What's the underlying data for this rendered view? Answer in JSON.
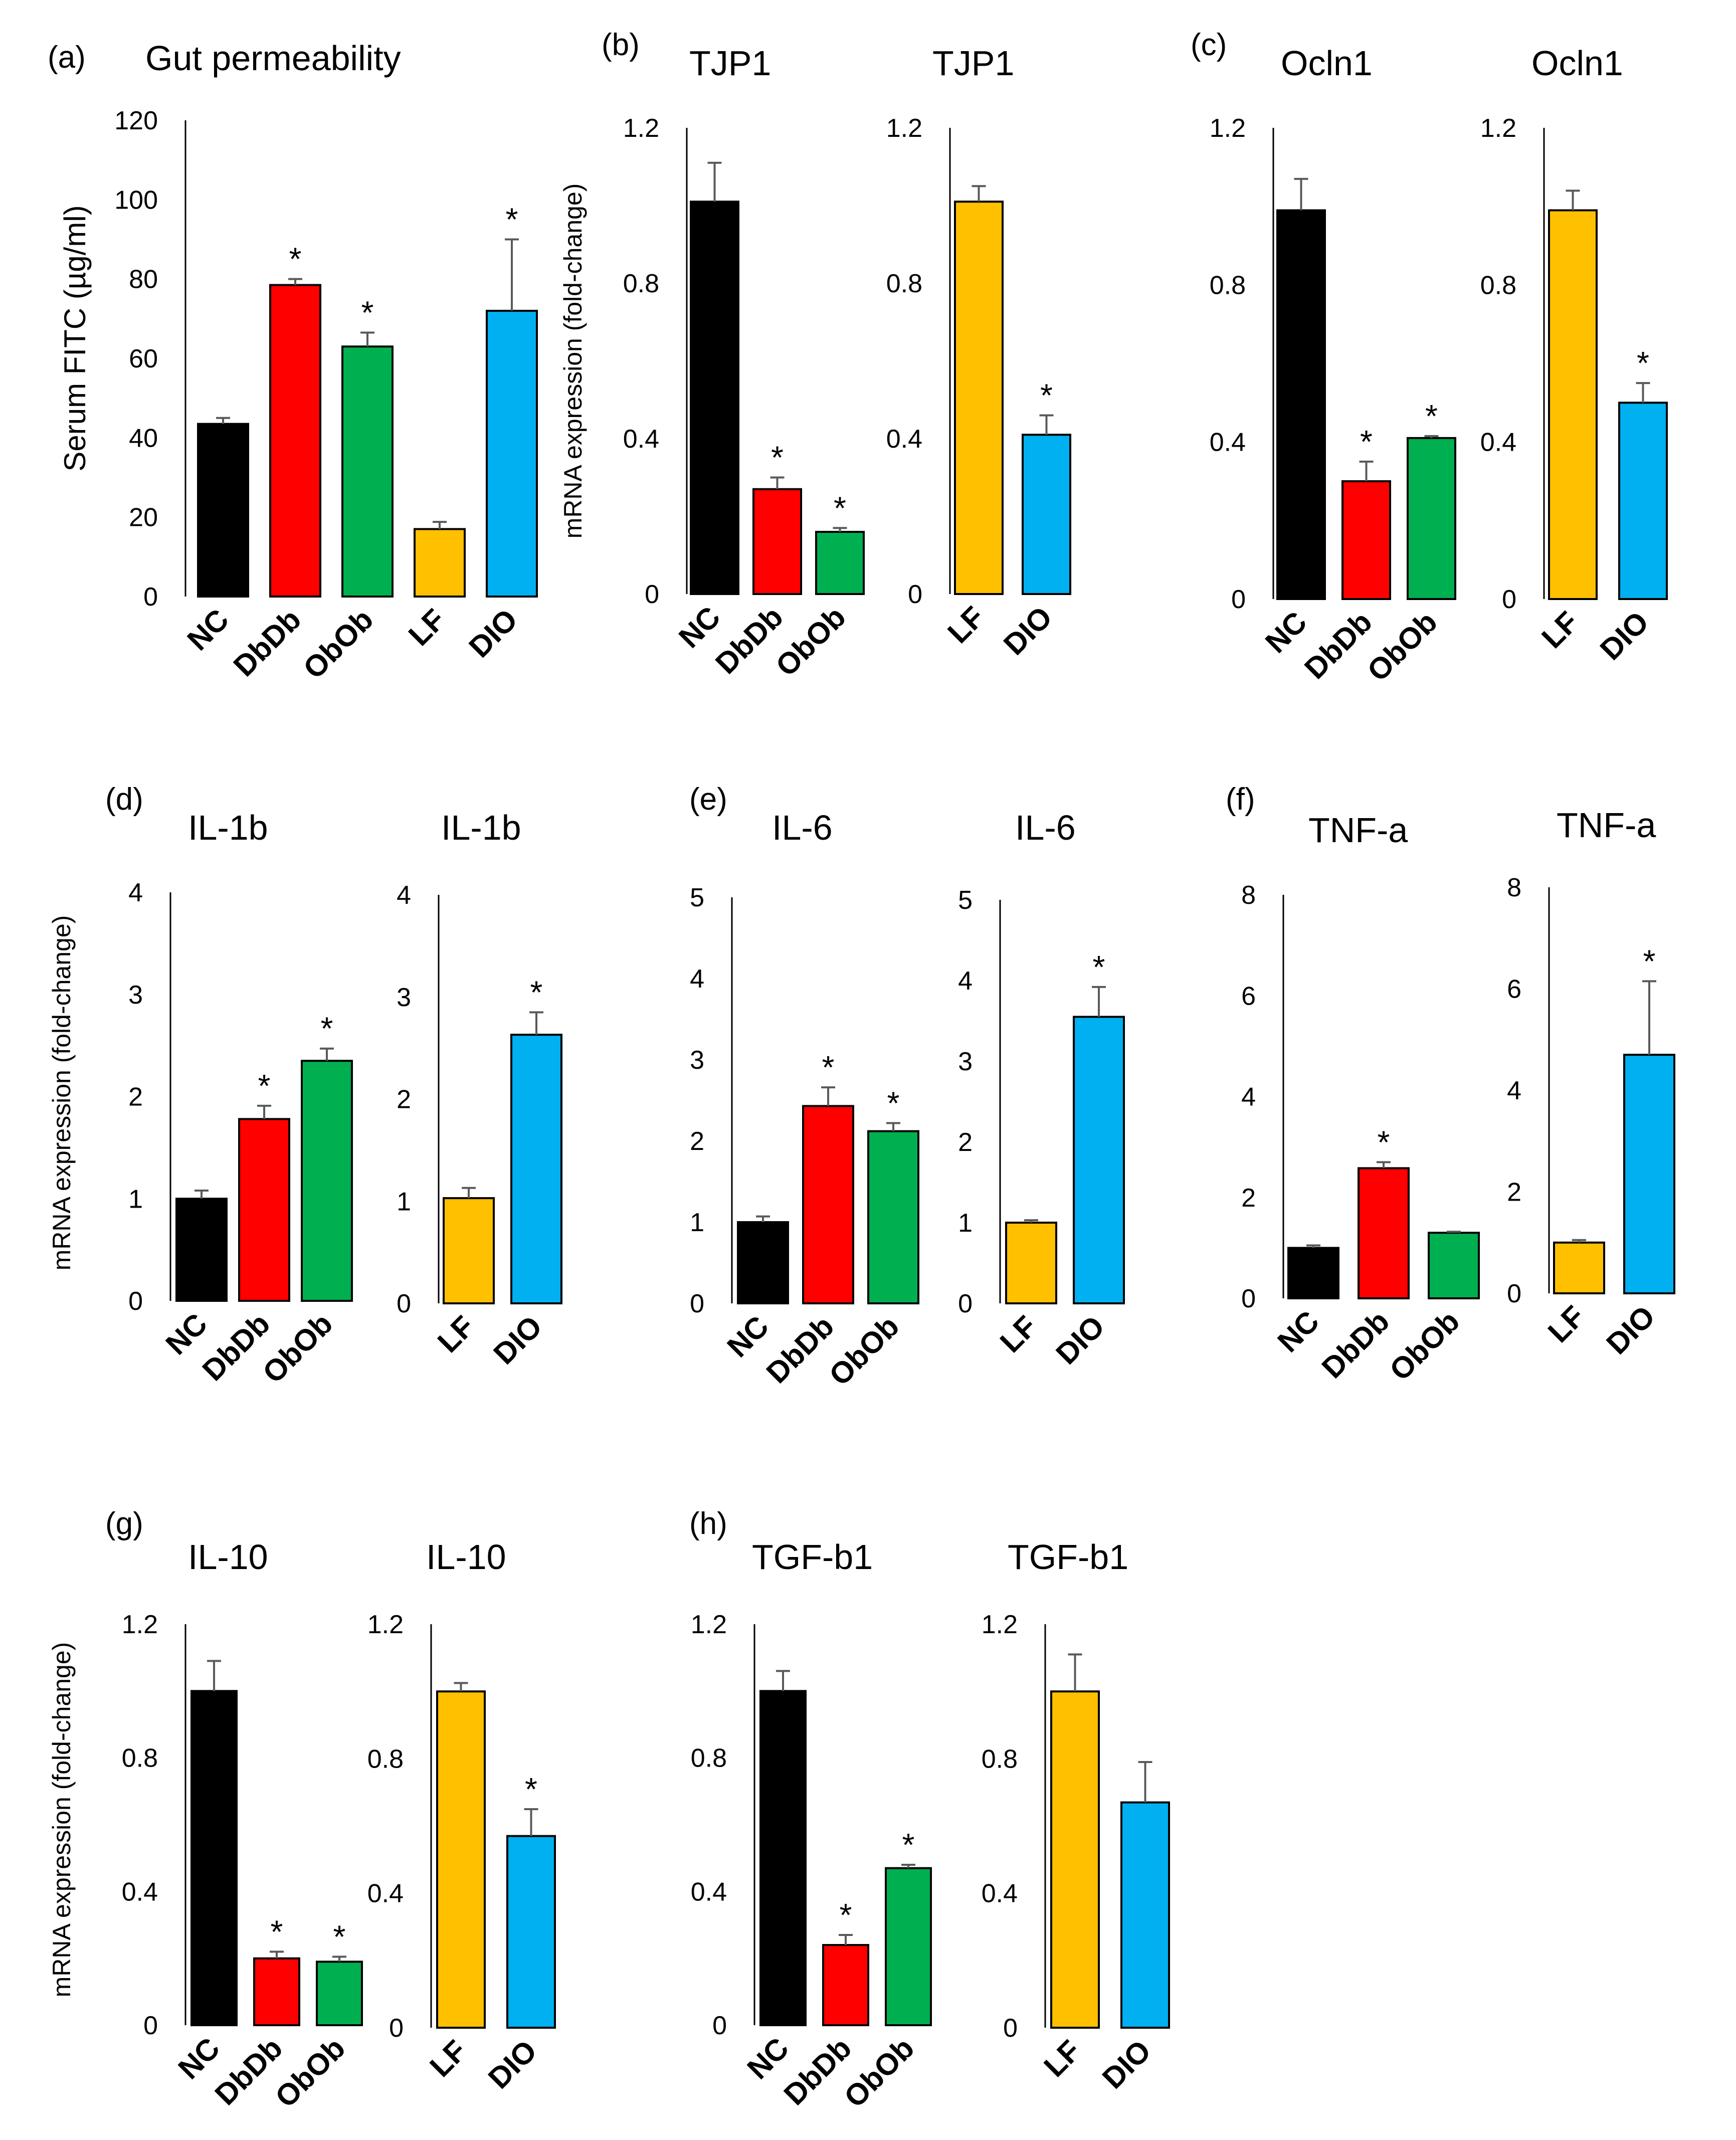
{
  "colors": {
    "NC": "#000000",
    "DbDb": "#ff0000",
    "ObOb": "#00b050",
    "LF": "#ffc000",
    "DIO": "#00b0f0",
    "error": "#595959",
    "axis": "#000000"
  },
  "common": {
    "mrna_ylabel": "mRNA expression  (fold-change)",
    "significance_marker": "*"
  },
  "panels": [
    {
      "letter": "(a)"
    },
    {
      "letter": "(b)"
    },
    {
      "letter": "(c)"
    },
    {
      "letter": "(d)"
    },
    {
      "letter": "(e)"
    },
    {
      "letter": "(f)"
    },
    {
      "letter": "(g)"
    },
    {
      "letter": "(h)"
    }
  ],
  "chart_data": [
    {
      "type": "bar",
      "panel": "(a)",
      "title": "Gut permeability",
      "ylabel": "Serum FITC (µg/ml)",
      "xlabel": "",
      "ylim": [
        0,
        120
      ],
      "yticks": [
        "0",
        "20",
        "40",
        "60",
        "80",
        "100",
        "120"
      ],
      "categories": [
        "NC",
        "DbDb",
        "ObOb",
        "LF",
        "DIO"
      ],
      "values": [
        43.5,
        78.5,
        63,
        17,
        72
      ],
      "errors": [
        1.5,
        1.5,
        3.5,
        1.8,
        18
      ],
      "significant": [
        false,
        true,
        true,
        false,
        true
      ]
    },
    {
      "type": "bar",
      "panel": "(b)",
      "title": "TJP1",
      "ylabel": "mRNA expression  (fold-change)",
      "xlabel": "",
      "ylim": [
        0,
        1.2
      ],
      "yticks": [
        "0",
        "0.4",
        "0.8",
        "1.2"
      ],
      "categories": [
        "NC",
        "DbDb",
        "ObOb"
      ],
      "values": [
        1.01,
        0.27,
        0.16
      ],
      "errors": [
        0.1,
        0.03,
        0.01
      ],
      "significant": [
        false,
        true,
        true
      ]
    },
    {
      "type": "bar",
      "panel": "(b)",
      "title": "TJP1",
      "ylabel": "",
      "xlabel": "",
      "ylim": [
        0,
        1.2
      ],
      "yticks": [
        "0",
        "0.4",
        "0.8",
        "1.2"
      ],
      "categories": [
        "LF",
        "DIO"
      ],
      "values": [
        1.01,
        0.41
      ],
      "errors": [
        0.04,
        0.05
      ],
      "significant": [
        false,
        true
      ]
    },
    {
      "type": "bar",
      "panel": "(c)",
      "title": "Ocln1",
      "ylabel": "",
      "xlabel": "",
      "ylim": [
        0,
        1.2
      ],
      "yticks": [
        "0",
        "0.4",
        "0.8",
        "1.2"
      ],
      "categories": [
        "NC",
        "DbDb",
        "ObOb"
      ],
      "values": [
        0.99,
        0.3,
        0.41
      ],
      "errors": [
        0.08,
        0.05,
        0.005
      ],
      "significant": [
        false,
        true,
        true
      ]
    },
    {
      "type": "bar",
      "panel": "(c)",
      "title": "Ocln1",
      "ylabel": "",
      "xlabel": "",
      "ylim": [
        0,
        1.2
      ],
      "yticks": [
        "0",
        "0.4",
        "0.8",
        "1.2"
      ],
      "categories": [
        "LF",
        "DIO"
      ],
      "values": [
        0.99,
        0.5
      ],
      "errors": [
        0.05,
        0.05
      ],
      "significant": [
        false,
        true
      ]
    },
    {
      "type": "bar",
      "panel": "(d)",
      "title": "IL-1b",
      "ylabel": "mRNA expression  (fold-change)",
      "xlabel": "",
      "ylim": [
        0,
        4
      ],
      "yticks": [
        "0",
        "1",
        "2",
        "3",
        "4"
      ],
      "categories": [
        "NC",
        "DbDb",
        "ObOb"
      ],
      "values": [
        1.0,
        1.78,
        2.35
      ],
      "errors": [
        0.08,
        0.13,
        0.12
      ],
      "significant": [
        false,
        true,
        true
      ]
    },
    {
      "type": "bar",
      "panel": "(d)",
      "title": "IL-1b",
      "ylabel": "",
      "xlabel": "",
      "ylim": [
        0,
        4
      ],
      "yticks": [
        "0",
        "1",
        "2",
        "3",
        "4"
      ],
      "categories": [
        "LF",
        "DIO"
      ],
      "values": [
        1.03,
        2.63
      ],
      "errors": [
        0.1,
        0.22
      ],
      "significant": [
        false,
        true
      ]
    },
    {
      "type": "bar",
      "panel": "(e)",
      "title": "IL-6",
      "ylabel": "",
      "xlabel": "",
      "ylim": [
        0,
        5
      ],
      "yticks": [
        "0",
        "1",
        "2",
        "3",
        "4",
        "5"
      ],
      "categories": [
        "NC",
        "DbDb",
        "ObOb"
      ],
      "values": [
        1.0,
        2.43,
        2.12
      ],
      "errors": [
        0.07,
        0.23,
        0.1
      ],
      "significant": [
        false,
        true,
        true
      ]
    },
    {
      "type": "bar",
      "panel": "(e)",
      "title": "IL-6",
      "ylabel": "",
      "xlabel": "",
      "ylim": [
        0,
        5
      ],
      "yticks": [
        "0",
        "1",
        "2",
        "3",
        "4",
        "5"
      ],
      "categories": [
        "LF",
        "DIO"
      ],
      "values": [
        1.0,
        3.55
      ],
      "errors": [
        0.03,
        0.37
      ],
      "significant": [
        false,
        true
      ]
    },
    {
      "type": "bar",
      "panel": "(f)",
      "title": "TNF-a",
      "ylabel": "",
      "xlabel": "",
      "ylim": [
        0,
        8
      ],
      "yticks": [
        "0",
        "2",
        "4",
        "6",
        "8"
      ],
      "categories": [
        "NC",
        "DbDb",
        "ObOb"
      ],
      "values": [
        1.0,
        2.58,
        1.3
      ],
      "errors": [
        0.05,
        0.12,
        0.02
      ],
      "significant": [
        false,
        true,
        false
      ]
    },
    {
      "type": "bar",
      "panel": "(f)",
      "title": "TNF-a",
      "ylabel": "",
      "xlabel": "",
      "ylim": [
        0,
        8
      ],
      "yticks": [
        "0",
        "2",
        "4",
        "6",
        "8"
      ],
      "categories": [
        "LF",
        "DIO"
      ],
      "values": [
        1.0,
        4.7
      ],
      "errors": [
        0.05,
        1.45
      ],
      "significant": [
        false,
        true
      ]
    },
    {
      "type": "bar",
      "panel": "(g)",
      "title": "IL-10",
      "ylabel": "mRNA expression  (fold-change)",
      "xlabel": "",
      "ylim": [
        0,
        1.2
      ],
      "yticks": [
        "0",
        "0.4",
        "0.8",
        "1.2"
      ],
      "categories": [
        "NC",
        "DbDb",
        "ObOb"
      ],
      "values": [
        1.0,
        0.2,
        0.19
      ],
      "errors": [
        0.09,
        0.02,
        0.015
      ],
      "significant": [
        false,
        true,
        true
      ]
    },
    {
      "type": "bar",
      "panel": "(g)",
      "title": "IL-10",
      "ylabel": "",
      "xlabel": "",
      "ylim": [
        0,
        1.2
      ],
      "yticks": [
        "0",
        "0.4",
        "0.8",
        "1.2"
      ],
      "categories": [
        "LF",
        "DIO"
      ],
      "values": [
        1.0,
        0.57
      ],
      "errors": [
        0.025,
        0.08
      ],
      "significant": [
        false,
        true
      ]
    },
    {
      "type": "bar",
      "panel": "(h)",
      "title": "TGF-b1",
      "ylabel": "",
      "xlabel": "",
      "ylim": [
        0,
        1.2
      ],
      "yticks": [
        "0",
        "0.4",
        "0.8",
        "1.2"
      ],
      "categories": [
        "NC",
        "DbDb",
        "ObOb"
      ],
      "values": [
        1.0,
        0.24,
        0.47
      ],
      "errors": [
        0.06,
        0.03,
        0.01
      ],
      "significant": [
        false,
        true,
        true
      ]
    },
    {
      "type": "bar",
      "panel": "(h)",
      "title": "TGF-b1",
      "ylabel": "",
      "xlabel": "",
      "ylim": [
        0,
        1.2
      ],
      "yticks": [
        "0",
        "0.4",
        "0.8",
        "1.2"
      ],
      "categories": [
        "LF",
        "DIO"
      ],
      "values": [
        1.0,
        0.67
      ],
      "errors": [
        0.11,
        0.12
      ],
      "significant": [
        false,
        false
      ]
    }
  ]
}
